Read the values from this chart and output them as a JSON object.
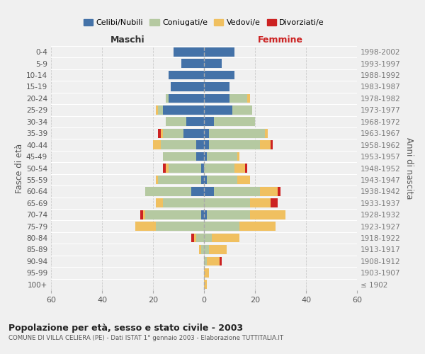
{
  "age_groups": [
    "100+",
    "95-99",
    "90-94",
    "85-89",
    "80-84",
    "75-79",
    "70-74",
    "65-69",
    "60-64",
    "55-59",
    "50-54",
    "45-49",
    "40-44",
    "35-39",
    "30-34",
    "25-29",
    "20-24",
    "15-19",
    "10-14",
    "5-9",
    "0-4"
  ],
  "birth_years": [
    "≤ 1902",
    "1903-1907",
    "1908-1912",
    "1913-1917",
    "1918-1922",
    "1923-1927",
    "1928-1932",
    "1933-1937",
    "1938-1942",
    "1943-1947",
    "1948-1952",
    "1953-1957",
    "1958-1962",
    "1963-1967",
    "1968-1972",
    "1973-1977",
    "1978-1982",
    "1983-1987",
    "1988-1992",
    "1993-1997",
    "1998-2002"
  ],
  "maschi_celibi": [
    0,
    0,
    0,
    0,
    0,
    0,
    1,
    0,
    5,
    1,
    1,
    3,
    3,
    8,
    7,
    16,
    14,
    13,
    14,
    9,
    12
  ],
  "maschi_coniugati": [
    0,
    0,
    0,
    1,
    3,
    19,
    22,
    16,
    18,
    17,
    13,
    13,
    14,
    8,
    8,
    2,
    1,
    0,
    0,
    0,
    0
  ],
  "maschi_vedovi": [
    0,
    0,
    0,
    1,
    1,
    8,
    1,
    3,
    0,
    1,
    1,
    0,
    3,
    1,
    0,
    1,
    0,
    0,
    0,
    0,
    0
  ],
  "maschi_divorziati": [
    0,
    0,
    0,
    0,
    1,
    0,
    1,
    0,
    0,
    0,
    1,
    0,
    0,
    1,
    0,
    0,
    0,
    0,
    0,
    0,
    0
  ],
  "femmine_celibi": [
    0,
    0,
    0,
    0,
    0,
    0,
    1,
    0,
    4,
    1,
    0,
    1,
    2,
    2,
    4,
    11,
    10,
    10,
    12,
    7,
    12
  ],
  "femmine_coniugati": [
    0,
    0,
    1,
    2,
    3,
    14,
    17,
    18,
    18,
    12,
    12,
    12,
    20,
    22,
    16,
    8,
    7,
    0,
    0,
    0,
    0
  ],
  "femmine_vedovi": [
    1,
    2,
    5,
    7,
    11,
    14,
    14,
    8,
    7,
    5,
    4,
    1,
    4,
    1,
    0,
    0,
    1,
    0,
    0,
    0,
    0
  ],
  "femmine_divorziati": [
    0,
    0,
    1,
    0,
    0,
    0,
    0,
    3,
    1,
    0,
    1,
    0,
    1,
    0,
    0,
    0,
    0,
    0,
    0,
    0,
    0
  ],
  "color_celibi": "#4472a8",
  "color_coniugati": "#b5c9a1",
  "color_vedovi": "#f0c060",
  "color_divorziati": "#cc2222",
  "title": "Popolazione per età, sesso e stato civile - 2003",
  "subtitle": "COMUNE DI VILLA CELIERA (PE) - Dati ISTAT 1° gennaio 2003 - Elaborazione TUTTITALIA.IT",
  "ylabel_left": "Fasce di età",
  "ylabel_right": "Anni di nascita",
  "xlabel_left": "Maschi",
  "xlabel_right": "Femmine",
  "legend_labels": [
    "Celibi/Nubili",
    "Coniugati/e",
    "Vedovi/e",
    "Divorziati/e"
  ],
  "xlim": 60,
  "background_color": "#f0f0f0",
  "grid_color": "#cccccc"
}
